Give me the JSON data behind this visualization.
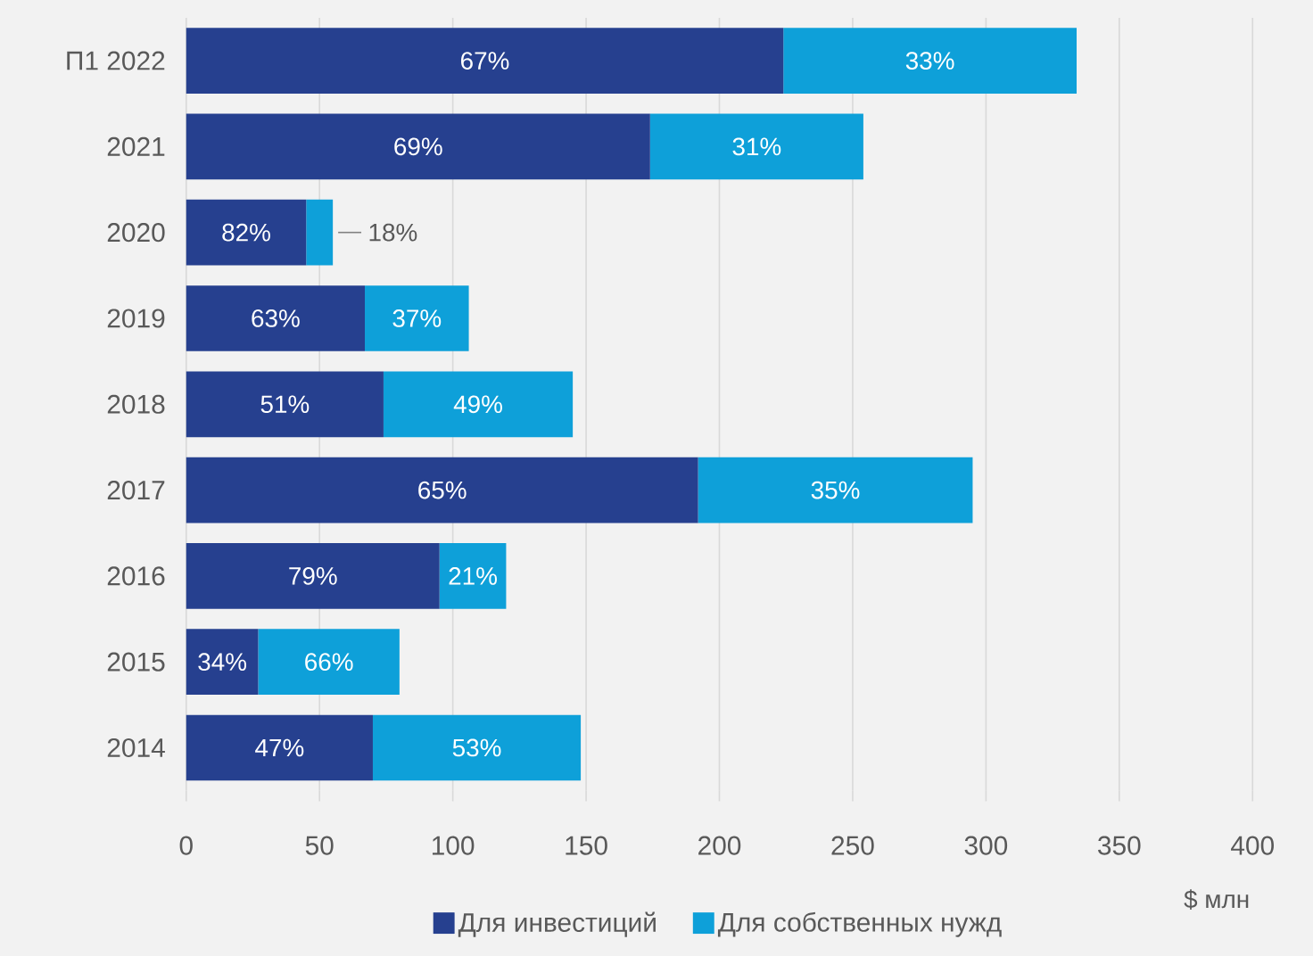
{
  "chart_data": {
    "type": "bar",
    "orientation": "horizontal",
    "stacked": true,
    "xlabel": "$ млн",
    "categories": [
      "П1 2022",
      "2021",
      "2020",
      "2019",
      "2018",
      "2017",
      "2016",
      "2015",
      "2014"
    ],
    "series": [
      {
        "name": "Для инвестиций",
        "color": "#26408f",
        "values": [
          224,
          174,
          45,
          67,
          74,
          192,
          95,
          27,
          70
        ]
      },
      {
        "name": "Для собственных нужд",
        "color": "#0ea0d9",
        "values": [
          110,
          80,
          10,
          39,
          71,
          103,
          25,
          53,
          78
        ]
      }
    ],
    "annotations": [
      "67%",
      "33%",
      "69%",
      "31%",
      "82%",
      "18%",
      "63%",
      "37%",
      "51%",
      "49%",
      "65%",
      "35%",
      "79%",
      "21%",
      "34%",
      "66%",
      "47%",
      "53%"
    ],
    "xlim": [
      0,
      400
    ],
    "xticks": [
      0,
      50,
      100,
      150,
      200,
      250,
      300,
      350,
      400
    ],
    "grid": "x",
    "legend": "bottom"
  }
}
